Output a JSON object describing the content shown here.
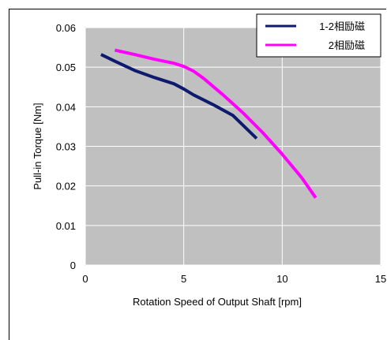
{
  "chart_data": {
    "type": "line",
    "title": "",
    "xlabel": "Rotation Speed of Output Shaft [rpm]",
    "ylabel": "Pull-in Torque [Nm]",
    "xlim": [
      0,
      15
    ],
    "ylim": [
      0,
      0.06
    ],
    "x_ticks": [
      "0",
      "5",
      "10",
      "15"
    ],
    "y_ticks": [
      "0",
      "0.01",
      "0.02",
      "0.03",
      "0.04",
      "0.05",
      "0.06"
    ],
    "grid": true,
    "legend_position": "top-right",
    "series": [
      {
        "name": "1-2相励磁",
        "color": "#0d1a6e",
        "x": [
          0.8,
          1.5,
          2.5,
          3.5,
          4.5,
          5.0,
          5.5,
          6.5,
          7.5,
          8.7
        ],
        "y": [
          0.0532,
          0.0515,
          0.0492,
          0.0474,
          0.0458,
          0.0445,
          0.043,
          0.0405,
          0.0378,
          0.032
        ]
      },
      {
        "name": "2相励磁",
        "color": "#ff00ff",
        "x": [
          1.5,
          2.5,
          3.5,
          4.5,
          5.0,
          5.5,
          6.0,
          7.0,
          8.0,
          9.0,
          10.0,
          11.0,
          11.7
        ],
        "y": [
          0.0543,
          0.0532,
          0.052,
          0.051,
          0.0502,
          0.049,
          0.0472,
          0.043,
          0.0385,
          0.0335,
          0.028,
          0.022,
          0.017
        ]
      }
    ]
  }
}
